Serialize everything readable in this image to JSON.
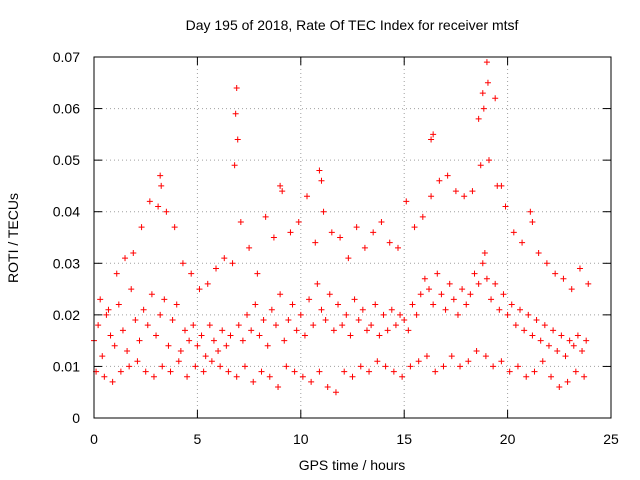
{
  "chart_data": {
    "type": "scatter",
    "title": "Day 195 of 2018, Rate Of TEC Index for receiver mtsf",
    "xlabel": "GPS time / hours",
    "ylabel": "ROTI / TECUs",
    "xlim": [
      0,
      25
    ],
    "ylim": [
      0,
      0.07
    ],
    "x_ticks": [
      0,
      5,
      10,
      15,
      20,
      25
    ],
    "x_tick_labels": [
      "0",
      "5",
      "10",
      "15",
      "20",
      "25"
    ],
    "y_ticks": [
      0,
      0.01,
      0.02,
      0.03,
      0.04,
      0.05,
      0.06,
      0.07
    ],
    "y_tick_labels": [
      "0",
      "0.01",
      "0.02",
      "0.03",
      "0.04",
      "0.05",
      "0.06",
      "0.07"
    ],
    "grid": true,
    "marker": "+",
    "series": [
      {
        "name": "ROTI",
        "color": "#ff0000",
        "x": [
          0.0,
          0.2,
          0.4,
          0.6,
          0.8,
          1.0,
          1.2,
          1.4,
          1.6,
          1.8,
          2.0,
          2.2,
          2.4,
          2.6,
          2.8,
          3.0,
          3.2,
          3.4,
          3.6,
          3.8,
          4.0,
          4.2,
          4.4,
          4.6,
          4.8,
          5.0,
          5.2,
          5.4,
          5.6,
          5.8,
          6.0,
          6.2,
          6.4,
          6.6,
          6.8,
          6.85,
          6.9,
          6.95,
          7.0,
          7.2,
          7.4,
          7.6,
          7.8,
          8.0,
          8.2,
          8.4,
          8.6,
          8.8,
          9.0,
          9.2,
          9.4,
          9.6,
          9.8,
          10.0,
          10.2,
          10.4,
          10.6,
          10.8,
          11.0,
          11.2,
          11.4,
          11.6,
          11.8,
          12.0,
          12.2,
          12.4,
          12.6,
          12.8,
          13.0,
          13.2,
          13.4,
          13.6,
          13.8,
          14.0,
          14.2,
          14.4,
          14.6,
          14.8,
          15.0,
          15.2,
          15.4,
          15.6,
          15.8,
          16.0,
          16.2,
          16.4,
          16.6,
          16.8,
          17.0,
          17.2,
          17.4,
          17.6,
          17.8,
          18.0,
          18.2,
          18.4,
          18.6,
          18.8,
          18.9,
          19.0,
          19.2,
          19.4,
          19.6,
          19.8,
          20.0,
          20.2,
          20.4,
          20.6,
          20.8,
          21.0,
          21.2,
          21.4,
          21.6,
          21.8,
          22.0,
          22.2,
          22.4,
          22.6,
          22.8,
          23.0,
          23.2,
          23.4,
          23.6,
          23.8,
          0.1,
          0.5,
          0.9,
          1.3,
          1.7,
          2.1,
          2.5,
          2.9,
          3.3,
          3.7,
          4.1,
          4.5,
          4.9,
          5.3,
          5.7,
          6.1,
          6.5,
          6.9,
          7.3,
          7.7,
          8.1,
          8.5,
          8.9,
          9.3,
          9.7,
          10.1,
          10.5,
          10.9,
          11.3,
          11.7,
          12.1,
          12.5,
          12.9,
          13.3,
          13.7,
          14.1,
          14.5,
          14.9,
          15.3,
          15.7,
          16.1,
          16.5,
          16.9,
          17.3,
          17.7,
          18.1,
          18.5,
          18.95,
          19.3,
          19.7,
          20.1,
          20.5,
          20.9,
          21.3,
          21.7,
          22.1,
          22.5,
          22.9,
          23.3,
          23.7,
          0.3,
          0.7,
          1.1,
          1.5,
          1.9,
          2.3,
          2.7,
          3.1,
          3.5,
          3.9,
          4.3,
          4.7,
          5.1,
          5.5,
          5.9,
          6.3,
          6.7,
          7.1,
          7.5,
          7.9,
          8.3,
          8.7,
          9.1,
          9.5,
          9.9,
          10.3,
          10.7,
          11.1,
          11.5,
          11.9,
          12.3,
          12.7,
          13.1,
          13.5,
          13.9,
          14.3,
          14.7,
          15.1,
          15.5,
          15.9,
          16.3,
          16.7,
          17.1,
          17.5,
          17.9,
          18.3,
          18.7,
          19.1,
          19.5,
          19.9,
          20.3,
          20.7,
          21.1,
          21.5,
          21.9,
          22.3,
          22.7,
          23.1,
          23.5,
          23.9,
          3.2,
          3.25,
          9.0,
          10.9,
          11.0,
          16.3,
          16.4,
          18.6,
          18.8,
          18.85,
          19.0,
          19.05,
          19.4,
          19.7,
          21.2
        ],
        "y": [
          0.015,
          0.018,
          0.012,
          0.02,
          0.016,
          0.014,
          0.022,
          0.017,
          0.013,
          0.025,
          0.019,
          0.015,
          0.021,
          0.018,
          0.024,
          0.016,
          0.02,
          0.023,
          0.014,
          0.019,
          0.022,
          0.013,
          0.017,
          0.015,
          0.018,
          0.014,
          0.016,
          0.012,
          0.018,
          0.015,
          0.013,
          0.017,
          0.014,
          0.016,
          0.049,
          0.059,
          0.064,
          0.054,
          0.018,
          0.015,
          0.02,
          0.017,
          0.022,
          0.016,
          0.019,
          0.014,
          0.021,
          0.018,
          0.024,
          0.015,
          0.019,
          0.022,
          0.017,
          0.02,
          0.016,
          0.023,
          0.018,
          0.026,
          0.021,
          0.019,
          0.024,
          0.017,
          0.022,
          0.018,
          0.02,
          0.016,
          0.023,
          0.019,
          0.021,
          0.017,
          0.018,
          0.022,
          0.016,
          0.02,
          0.017,
          0.021,
          0.018,
          0.02,
          0.019,
          0.017,
          0.022,
          0.02,
          0.024,
          0.027,
          0.025,
          0.022,
          0.028,
          0.024,
          0.021,
          0.026,
          0.023,
          0.02,
          0.025,
          0.022,
          0.024,
          0.028,
          0.026,
          0.03,
          0.032,
          0.027,
          0.023,
          0.026,
          0.021,
          0.024,
          0.02,
          0.022,
          0.018,
          0.021,
          0.017,
          0.02,
          0.016,
          0.019,
          0.015,
          0.018,
          0.014,
          0.017,
          0.013,
          0.016,
          0.012,
          0.015,
          0.014,
          0.016,
          0.013,
          0.015,
          0.009,
          0.008,
          0.007,
          0.009,
          0.01,
          0.011,
          0.009,
          0.008,
          0.01,
          0.009,
          0.011,
          0.008,
          0.01,
          0.009,
          0.011,
          0.01,
          0.009,
          0.008,
          0.01,
          0.007,
          0.009,
          0.008,
          0.006,
          0.01,
          0.009,
          0.008,
          0.007,
          0.009,
          0.006,
          0.005,
          0.009,
          0.008,
          0.01,
          0.009,
          0.011,
          0.01,
          0.009,
          0.008,
          0.01,
          0.011,
          0.012,
          0.009,
          0.01,
          0.012,
          0.01,
          0.011,
          0.013,
          0.012,
          0.01,
          0.011,
          0.009,
          0.01,
          0.008,
          0.009,
          0.011,
          0.008,
          0.006,
          0.007,
          0.009,
          0.008,
          0.023,
          0.021,
          0.028,
          0.031,
          0.032,
          0.037,
          0.042,
          0.041,
          0.04,
          0.037,
          0.03,
          0.028,
          0.025,
          0.026,
          0.029,
          0.031,
          0.03,
          0.038,
          0.033,
          0.028,
          0.039,
          0.035,
          0.044,
          0.036,
          0.038,
          0.043,
          0.034,
          0.04,
          0.036,
          0.035,
          0.031,
          0.037,
          0.033,
          0.036,
          0.038,
          0.034,
          0.033,
          0.042,
          0.037,
          0.039,
          0.043,
          0.046,
          0.047,
          0.044,
          0.043,
          0.044,
          0.049,
          0.05,
          0.045,
          0.041,
          0.036,
          0.034,
          0.04,
          0.032,
          0.03,
          0.028,
          0.027,
          0.025,
          0.029,
          0.026,
          0.047,
          0.045,
          0.045,
          0.048,
          0.046,
          0.054,
          0.055,
          0.058,
          0.063,
          0.06,
          0.069,
          0.065,
          0.062,
          0.045,
          0.038
        ]
      }
    ]
  }
}
